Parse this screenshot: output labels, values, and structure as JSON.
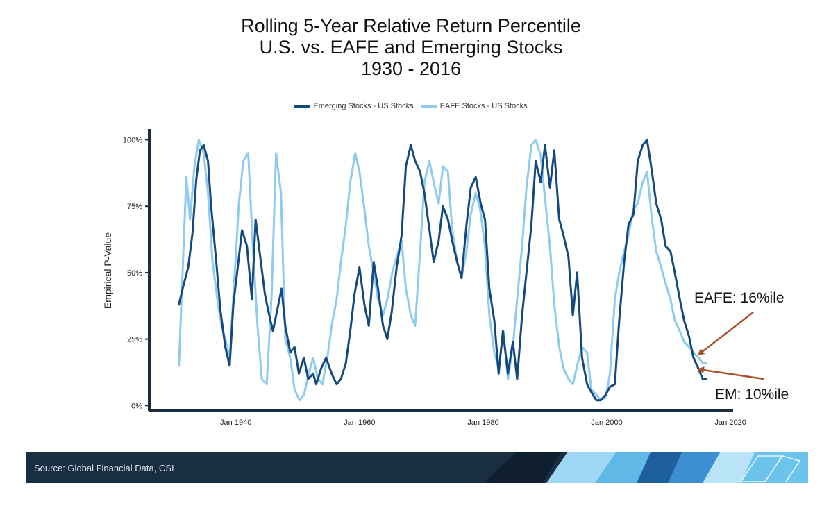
{
  "title_lines": [
    "Rolling 5-Year Relative Return Percentile",
    "U.S. vs. EAFE and Emerging Stocks",
    "1930 - 2016"
  ],
  "annotations": {
    "eafe": "EAFE: 16%ile",
    "em": "EM: 10%ile"
  },
  "footer": {
    "source": "Source: Global Financial Data, CSI"
  },
  "colors": {
    "emerging": "#14497f",
    "eafe": "#8ecbee",
    "arrow": "#a5512b",
    "axis": "#1a2e42",
    "footer_bg": "#1a2e42"
  },
  "chart_data": {
    "type": "line",
    "title": "Rolling 5-Year Relative Return Percentile U.S. vs. EAFE and Emerging Stocks 1930 - 2016",
    "xlabel": "",
    "ylabel": "Empirical P-Value",
    "x_ticks": [
      "Jan 1940",
      "Jan 1960",
      "Jan 1980",
      "Jan 2000",
      "Jan 2020"
    ],
    "x_tick_years": [
      1940,
      1960,
      1980,
      2000,
      2020
    ],
    "y_ticks": [
      "0%",
      "25%",
      "50%",
      "75%",
      "100%"
    ],
    "y_tick_values": [
      0,
      25,
      50,
      75,
      100
    ],
    "xlim": [
      1926,
      2022
    ],
    "ylim": [
      -2,
      103
    ],
    "legend_position": "top",
    "series": [
      {
        "name": "Emerging Stocks - US Stocks",
        "x": [
          1930.8,
          1931.5,
          1932.3,
          1933,
          1933.6,
          1934.2,
          1934.8,
          1935.5,
          1936,
          1936.8,
          1937.5,
          1938.3,
          1939,
          1939.6,
          1940.3,
          1941,
          1941.8,
          1942.6,
          1943.2,
          1944,
          1944.7,
          1945.3,
          1946,
          1946.7,
          1947.4,
          1948,
          1948.8,
          1949.5,
          1950.2,
          1951,
          1951.7,
          1952.5,
          1953,
          1953.8,
          1954.6,
          1955.5,
          1956.3,
          1957,
          1957.8,
          1958.5,
          1959.2,
          1960,
          1960.8,
          1961.5,
          1962.3,
          1963,
          1963.8,
          1964.5,
          1965.2,
          1966,
          1966.8,
          1967.5,
          1968.3,
          1969,
          1969.8,
          1970.5,
          1971.2,
          1972,
          1972.8,
          1973.5,
          1974.3,
          1975,
          1975.8,
          1976.5,
          1977.3,
          1978,
          1978.8,
          1979.6,
          1980.3,
          1981,
          1981.8,
          1982.5,
          1983.2,
          1984,
          1984.8,
          1985.5,
          1986.3,
          1987,
          1987.8,
          1988.5,
          1989.3,
          1990,
          1990.8,
          1991.5,
          1992.3,
          1993,
          1993.8,
          1994.5,
          1995.2,
          1996,
          1996.8,
          1997.5,
          1998.3,
          1999,
          1999.8,
          2000.5,
          2001.3,
          2002,
          2002.8,
          2003.5,
          2004.3,
          2005,
          2005.8,
          2006.5,
          2007.3,
          2008,
          2008.8,
          2009.5,
          2010.3,
          2011,
          2011.8,
          2012.5,
          2013.3,
          2014,
          2014.8,
          2015.5,
          2016
        ],
        "values": [
          38,
          45,
          52,
          65,
          85,
          96,
          98,
          92,
          75,
          55,
          36,
          22,
          15,
          38,
          52,
          66,
          60,
          40,
          70,
          55,
          42,
          35,
          28,
          36,
          44,
          30,
          20,
          22,
          12,
          18,
          10,
          12,
          8,
          14,
          18,
          12,
          8,
          10,
          16,
          28,
          42,
          52,
          38,
          30,
          54,
          44,
          30,
          25,
          35,
          52,
          64,
          90,
          98,
          92,
          88,
          80,
          68,
          54,
          62,
          75,
          70,
          62,
          54,
          48,
          68,
          82,
          86,
          76,
          70,
          44,
          32,
          12,
          28,
          12,
          24,
          10,
          34,
          50,
          68,
          92,
          84,
          98,
          82,
          96,
          70,
          64,
          56,
          34,
          50,
          18,
          8,
          5,
          2,
          2,
          4,
          7,
          8,
          32,
          54,
          68,
          72,
          92,
          98,
          100,
          88,
          76,
          70,
          60,
          58,
          50,
          40,
          32,
          26,
          18,
          14,
          10,
          10
        ],
        "value_labels_printed": false
      },
      {
        "name": "EAFE Stocks - US Stocks",
        "x": [
          1930.8,
          1931.3,
          1932,
          1932.6,
          1933.3,
          1934,
          1934.8,
          1935.5,
          1936.2,
          1937,
          1937.7,
          1938.3,
          1939,
          1939.7,
          1940.5,
          1941.2,
          1942,
          1942.8,
          1943.5,
          1944.2,
          1945,
          1945.8,
          1946.5,
          1947.3,
          1948,
          1948.8,
          1949.5,
          1950.3,
          1951,
          1951.8,
          1952.5,
          1953.3,
          1954,
          1954.8,
          1955.5,
          1956.3,
          1957,
          1957.8,
          1958.5,
          1959.3,
          1960,
          1960.8,
          1961.5,
          1962.3,
          1963,
          1963.8,
          1964.5,
          1965.3,
          1966,
          1966.8,
          1967.5,
          1968.3,
          1969,
          1969.8,
          1970.5,
          1971.3,
          1972,
          1972.8,
          1973.5,
          1974.3,
          1975,
          1975.8,
          1976.5,
          1977.3,
          1978,
          1978.8,
          1979.5,
          1980.3,
          1981,
          1981.8,
          1982.5,
          1983.3,
          1984,
          1984.8,
          1985.5,
          1986.3,
          1987,
          1987.8,
          1988.5,
          1989.3,
          1990,
          1990.8,
          1991.5,
          1992.3,
          1993,
          1993.8,
          1994.5,
          1995.3,
          1996,
          1996.8,
          1997.5,
          1998.3,
          1999,
          1999.8,
          2000.5,
          2001.3,
          2002,
          2002.8,
          2003.5,
          2004.3,
          2005,
          2005.8,
          2006.5,
          2007.3,
          2008,
          2008.8,
          2009.5,
          2010.3,
          2011,
          2011.8,
          2012.5,
          2013.3,
          2014,
          2014.8,
          2015.5,
          2016
        ],
        "values": [
          15,
          45,
          86,
          70,
          90,
          100,
          95,
          80,
          55,
          40,
          30,
          25,
          18,
          45,
          76,
          92,
          95,
          58,
          30,
          10,
          8,
          42,
          95,
          80,
          25,
          18,
          6,
          2,
          4,
          12,
          18,
          10,
          8,
          18,
          30,
          40,
          54,
          68,
          84,
          95,
          88,
          74,
          60,
          50,
          40,
          34,
          40,
          50,
          56,
          62,
          44,
          34,
          30,
          58,
          84,
          92,
          84,
          76,
          90,
          88,
          66,
          54,
          48,
          58,
          72,
          80,
          74,
          60,
          34,
          20,
          14,
          28,
          10,
          22,
          40,
          60,
          82,
          98,
          100,
          94,
          78,
          60,
          38,
          22,
          14,
          10,
          8,
          16,
          22,
          20,
          6,
          4,
          2,
          3,
          12,
          40,
          50,
          58,
          64,
          74,
          76,
          84,
          88,
          70,
          58,
          52,
          46,
          40,
          32,
          28,
          24,
          22,
          20,
          18,
          16,
          16
        ],
        "value_labels_printed": false
      }
    ]
  }
}
